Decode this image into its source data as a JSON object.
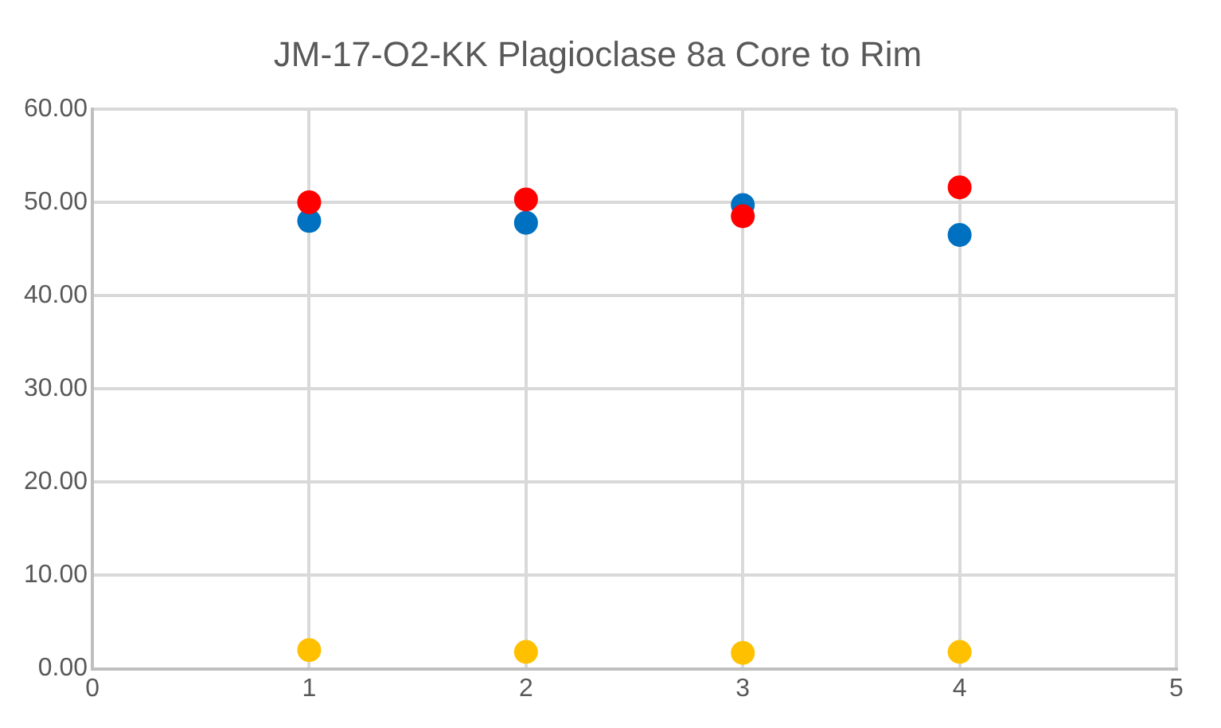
{
  "chart_data": {
    "type": "scatter",
    "title": "JM-17-O2-KK Plagioclase 8a Core to Rim",
    "x": [
      1,
      2,
      3,
      4
    ],
    "series": [
      {
        "color": "#0070c0",
        "values": [
          48.0,
          47.8,
          49.7,
          46.5
        ]
      },
      {
        "color": "#ffc000",
        "values": [
          2.0,
          1.8,
          1.7,
          1.8
        ]
      },
      {
        "color": "#ff0000",
        "values": [
          50.0,
          50.3,
          48.5,
          51.6
        ]
      }
    ],
    "xlim": [
      0,
      5
    ],
    "xticks": [
      0,
      1,
      2,
      3,
      4,
      5
    ],
    "ylim": [
      0,
      60
    ],
    "yticks": [
      {
        "value": 0,
        "label": "0.00"
      },
      {
        "value": 10,
        "label": "10.00"
      },
      {
        "value": 20,
        "label": "20.00"
      },
      {
        "value": 30,
        "label": "30.00"
      },
      {
        "value": 40,
        "label": "40.00"
      },
      {
        "value": 50,
        "label": "50.00"
      },
      {
        "value": 60,
        "label": "60.00"
      }
    ],
    "grid": true,
    "legend": false,
    "marker": "circle"
  }
}
